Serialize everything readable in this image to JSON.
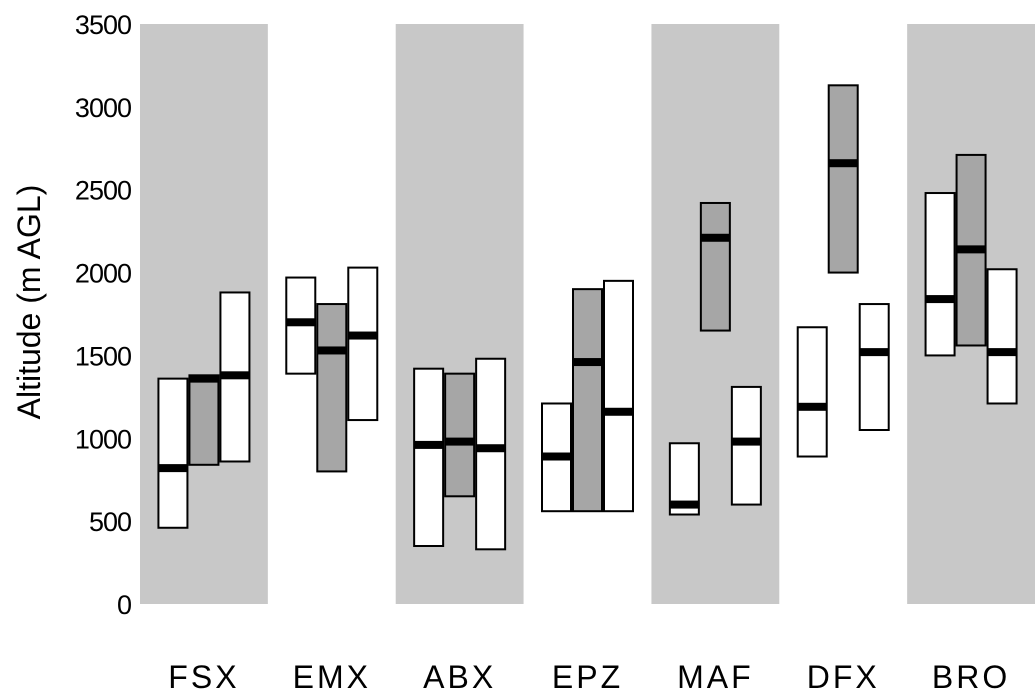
{
  "chart_data": {
    "type": "box",
    "ylabel": "Altitude (m AGL)",
    "ylim": [
      0,
      3500
    ],
    "yticks": [
      0,
      500,
      1000,
      1500,
      2000,
      2500,
      3000,
      3500
    ],
    "ytick_labels": [
      "0",
      "500",
      "1000",
      "1500",
      "2000",
      "2500",
      "3000",
      "3500"
    ],
    "categories": [
      "FSX",
      "EMX",
      "ABX",
      "EPZ",
      "MAF",
      "DFX",
      "BRO"
    ],
    "band_color": "#c8c8c8",
    "box_colors": {
      "white": "#ffffff",
      "gray": "#a6a6a6"
    },
    "groups": [
      {
        "category": "FSX",
        "shaded": true,
        "boxes": [
          {
            "low": 460,
            "high": 1360,
            "median": 820,
            "fill": "white"
          },
          {
            "low": 840,
            "high": 1380,
            "median": 1360,
            "fill": "gray"
          },
          {
            "low": 860,
            "high": 1880,
            "median": 1380,
            "fill": "white"
          }
        ]
      },
      {
        "category": "EMX",
        "shaded": false,
        "boxes": [
          {
            "low": 1390,
            "high": 1970,
            "median": 1700,
            "fill": "white"
          },
          {
            "low": 800,
            "high": 1810,
            "median": 1530,
            "fill": "gray"
          },
          {
            "low": 1110,
            "high": 2030,
            "median": 1620,
            "fill": "white"
          }
        ]
      },
      {
        "category": "ABX",
        "shaded": true,
        "boxes": [
          {
            "low": 350,
            "high": 1420,
            "median": 960,
            "fill": "white"
          },
          {
            "low": 650,
            "high": 1390,
            "median": 980,
            "fill": "gray"
          },
          {
            "low": 330,
            "high": 1480,
            "median": 940,
            "fill": "white"
          }
        ]
      },
      {
        "category": "EPZ",
        "shaded": false,
        "boxes": [
          {
            "low": 560,
            "high": 1210,
            "median": 890,
            "fill": "white"
          },
          {
            "low": 560,
            "high": 1900,
            "median": 1460,
            "fill": "gray"
          },
          {
            "low": 560,
            "high": 1950,
            "median": 1160,
            "fill": "white"
          }
        ]
      },
      {
        "category": "MAF",
        "shaded": true,
        "boxes": [
          {
            "low": 540,
            "high": 970,
            "median": 600,
            "fill": "white"
          },
          {
            "low": 1650,
            "high": 2420,
            "median": 2210,
            "fill": "gray"
          },
          {
            "low": 600,
            "high": 1310,
            "median": 980,
            "fill": "white"
          }
        ]
      },
      {
        "category": "DFX",
        "shaded": false,
        "boxes": [
          {
            "low": 890,
            "high": 1670,
            "median": 1190,
            "fill": "white"
          },
          {
            "low": 2000,
            "high": 3130,
            "median": 2660,
            "fill": "gray"
          },
          {
            "low": 1050,
            "high": 1810,
            "median": 1520,
            "fill": "white"
          }
        ]
      },
      {
        "category": "BRO",
        "shaded": true,
        "boxes": [
          {
            "low": 1500,
            "high": 2480,
            "median": 1840,
            "fill": "white"
          },
          {
            "low": 1560,
            "high": 2710,
            "median": 2140,
            "fill": "gray"
          },
          {
            "low": 1210,
            "high": 2020,
            "median": 1520,
            "fill": "white"
          }
        ]
      }
    ]
  }
}
